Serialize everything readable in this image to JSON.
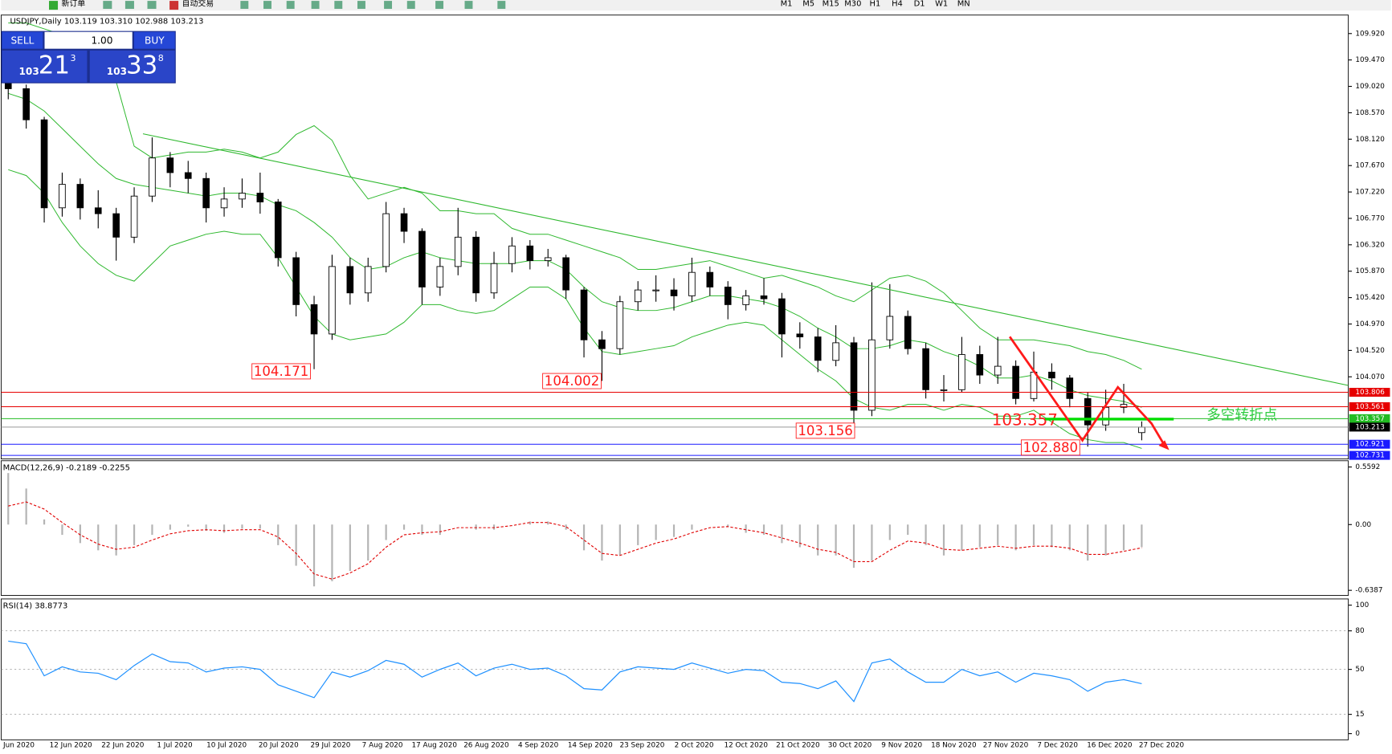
{
  "toolbar": {
    "new_order": "新订单",
    "auto_trading": "自动交易",
    "timeframes": [
      "M1",
      "M5",
      "M15",
      "M30",
      "H1",
      "H4",
      "D1",
      "W1",
      "MN"
    ]
  },
  "trade_panel": {
    "sell": "SELL",
    "buy": "BUY",
    "lots": "1.00",
    "bid": {
      "big": "103",
      "pips": "21",
      "fraction": "3"
    },
    "ask": {
      "big": "103",
      "pips": "33",
      "fraction": "8"
    }
  },
  "chart_data": [
    {
      "type": "candlestick",
      "title": "USDJPY,Daily  103.119 103.310 102.988 103.213",
      "candles": [
        [
          109.2,
          109.4,
          108.8,
          108.98
        ],
        [
          108.98,
          109.05,
          108.3,
          108.45
        ],
        [
          108.45,
          108.5,
          106.7,
          106.95
        ],
        [
          106.95,
          107.55,
          106.8,
          107.35
        ],
        [
          107.35,
          107.45,
          106.75,
          106.95
        ],
        [
          106.95,
          107.25,
          106.6,
          106.85
        ],
        [
          106.85,
          106.95,
          106.05,
          106.45
        ],
        [
          106.45,
          107.3,
          106.35,
          107.15
        ],
        [
          107.15,
          108.15,
          107.05,
          107.8
        ],
        [
          107.8,
          107.9,
          107.3,
          107.55
        ],
        [
          107.55,
          107.75,
          107.2,
          107.45
        ],
        [
          107.45,
          107.55,
          106.7,
          106.95
        ],
        [
          106.95,
          107.3,
          106.8,
          107.1
        ],
        [
          107.1,
          107.45,
          106.95,
          107.2
        ],
        [
          107.2,
          107.55,
          106.85,
          107.05
        ],
        [
          107.05,
          107.1,
          105.95,
          106.1
        ],
        [
          106.1,
          106.2,
          105.1,
          105.3
        ],
        [
          105.3,
          105.45,
          104.2,
          104.8
        ],
        [
          104.8,
          106.15,
          104.7,
          105.95
        ],
        [
          105.95,
          106.1,
          105.3,
          105.5
        ],
        [
          105.5,
          106.1,
          105.35,
          105.95
        ],
        [
          105.95,
          107.05,
          105.85,
          106.85
        ],
        [
          106.85,
          106.95,
          106.35,
          106.55
        ],
        [
          106.55,
          106.6,
          105.3,
          105.6
        ],
        [
          105.6,
          106.1,
          105.45,
          105.95
        ],
        [
          105.95,
          106.95,
          105.8,
          106.45
        ],
        [
          106.45,
          106.55,
          105.35,
          105.5
        ],
        [
          105.5,
          106.2,
          105.4,
          106.0
        ],
        [
          106.0,
          106.45,
          105.85,
          106.3
        ],
        [
          106.3,
          106.4,
          105.9,
          106.05
        ],
        [
          106.05,
          106.25,
          105.95,
          106.1
        ],
        [
          106.1,
          106.15,
          105.4,
          105.55
        ],
        [
          105.55,
          105.6,
          104.4,
          104.7
        ],
        [
          104.7,
          104.85,
          104.0,
          104.55
        ],
        [
          104.55,
          105.45,
          104.45,
          105.35
        ],
        [
          105.35,
          105.7,
          105.2,
          105.55
        ],
        [
          105.55,
          105.8,
          105.35,
          105.55
        ],
        [
          105.55,
          105.75,
          105.2,
          105.45
        ],
        [
          105.45,
          106.1,
          105.35,
          105.85
        ],
        [
          105.85,
          105.95,
          105.45,
          105.6
        ],
        [
          105.6,
          105.7,
          105.05,
          105.3
        ],
        [
          105.3,
          105.55,
          105.2,
          105.45
        ],
        [
          105.45,
          105.75,
          105.3,
          105.4
        ],
        [
          105.4,
          105.5,
          104.4,
          104.8
        ],
        [
          104.8,
          105.0,
          104.55,
          104.75
        ],
        [
          104.75,
          104.9,
          104.15,
          104.35
        ],
        [
          104.35,
          104.95,
          104.25,
          104.65
        ],
        [
          104.65,
          104.75,
          103.18,
          103.5
        ],
        [
          103.5,
          105.68,
          103.4,
          104.7
        ],
        [
          104.7,
          105.65,
          104.55,
          105.1
        ],
        [
          105.1,
          105.2,
          104.45,
          104.55
        ],
        [
          104.55,
          104.65,
          103.7,
          103.85
        ],
        [
          103.85,
          104.1,
          103.65,
          103.85
        ],
        [
          103.85,
          104.75,
          103.8,
          104.45
        ],
        [
          104.45,
          104.6,
          103.95,
          104.1
        ],
        [
          104.1,
          104.75,
          103.95,
          104.25
        ],
        [
          104.25,
          104.35,
          103.6,
          103.7
        ],
        [
          103.7,
          104.5,
          103.65,
          104.15
        ],
        [
          104.15,
          104.3,
          103.85,
          104.05
        ],
        [
          104.05,
          104.1,
          103.55,
          103.7
        ],
        [
          103.7,
          103.8,
          102.88,
          103.25
        ],
        [
          103.25,
          103.85,
          103.15,
          103.55
        ],
        [
          103.55,
          103.95,
          103.45,
          103.6
        ],
        [
          103.119,
          103.31,
          102.988,
          103.213
        ]
      ],
      "bands": {
        "color": "#2eb82e",
        "upper": [
          110.1,
          110.1,
          110.0,
          109.9,
          109.7,
          109.4,
          109.1,
          108.0,
          107.8,
          107.85,
          107.9,
          107.9,
          107.95,
          107.9,
          107.8,
          107.9,
          108.2,
          108.35,
          108.1,
          107.5,
          107.1,
          107.2,
          107.3,
          107.2,
          106.9,
          106.9,
          106.85,
          106.85,
          106.6,
          106.5,
          106.5,
          106.4,
          106.3,
          106.2,
          106.1,
          105.9,
          105.9,
          105.95,
          106.0,
          106.05,
          105.95,
          105.85,
          105.75,
          105.8,
          105.7,
          105.6,
          105.45,
          105.35,
          105.55,
          105.75,
          105.8,
          105.7,
          105.5,
          105.2,
          104.9,
          104.7,
          104.7,
          104.7,
          104.65,
          104.6,
          104.5,
          104.45,
          104.35,
          104.2
        ],
        "middle": [
          108.9,
          108.8,
          108.6,
          108.3,
          108.0,
          107.7,
          107.45,
          107.35,
          107.3,
          107.25,
          107.2,
          107.15,
          107.2,
          107.2,
          107.15,
          107.0,
          106.9,
          106.7,
          106.45,
          106.1,
          105.9,
          105.95,
          106.1,
          106.2,
          106.1,
          106.05,
          106.0,
          106.0,
          106.0,
          106.05,
          106.05,
          105.9,
          105.6,
          105.35,
          105.25,
          105.2,
          105.2,
          105.25,
          105.35,
          105.45,
          105.45,
          105.4,
          105.35,
          105.25,
          105.1,
          104.9,
          104.75,
          104.55,
          104.55,
          104.6,
          104.7,
          104.65,
          104.5,
          104.4,
          104.25,
          104.05,
          104.05,
          104.1,
          104.0,
          103.85,
          103.75,
          103.7,
          103.65,
          103.55
        ],
        "lower": [
          107.6,
          107.5,
          107.2,
          106.7,
          106.3,
          106.0,
          105.8,
          105.7,
          106.0,
          106.3,
          106.4,
          106.5,
          106.55,
          106.5,
          106.5,
          106.1,
          105.6,
          105.1,
          104.8,
          104.7,
          104.75,
          104.8,
          105.0,
          105.3,
          105.3,
          105.2,
          105.15,
          105.2,
          105.4,
          105.6,
          105.6,
          105.4,
          104.9,
          104.5,
          104.45,
          104.5,
          104.55,
          104.6,
          104.75,
          104.85,
          104.95,
          105.0,
          104.95,
          104.7,
          104.45,
          104.2,
          104.0,
          103.7,
          103.55,
          103.5,
          103.6,
          103.6,
          103.5,
          103.6,
          103.55,
          103.4,
          103.4,
          103.5,
          103.3,
          103.1,
          103.0,
          102.95,
          102.95,
          102.85
        ]
      },
      "ylim": [
        102.67,
        110.22
      ],
      "yticks": [
        {
          "value": 109.92,
          "label": "109.920"
        },
        {
          "value": 109.47,
          "label": "109.470"
        },
        {
          "value": 109.02,
          "label": "109.020"
        },
        {
          "value": 108.57,
          "label": "108.570"
        },
        {
          "value": 108.12,
          "label": "108.120"
        },
        {
          "value": 107.67,
          "label": "107.670"
        },
        {
          "value": 107.22,
          "label": "107.220"
        },
        {
          "value": 106.77,
          "label": "106.770"
        },
        {
          "value": 106.32,
          "label": "106.320"
        },
        {
          "value": 105.87,
          "label": "105.870"
        },
        {
          "value": 105.42,
          "label": "105.420"
        },
        {
          "value": 104.97,
          "label": "104.970"
        },
        {
          "value": 104.52,
          "label": "104.520"
        },
        {
          "value": 104.07,
          "label": "104.070"
        }
      ],
      "price_lines": [
        {
          "value": 103.806,
          "color": "#e60000"
        },
        {
          "value": 103.561,
          "color": "#e60000"
        },
        {
          "value": 103.357,
          "color": "#22bb22"
        },
        {
          "value": 103.213,
          "color": "#000000"
        },
        {
          "value": 102.921,
          "color": "#1a1aff"
        },
        {
          "value": 102.731,
          "color": "#1a1aff"
        }
      ],
      "annotations": [
        "104.171",
        "104.002",
        "103.156",
        "103.357",
        "102.880",
        "多空转折点"
      ],
      "date_labels": [
        "Jun 2020",
        "12 Jun 2020",
        "22 Jun 2020",
        "1 Jul 2020",
        "10 Jul 2020",
        "20 Jul 2020",
        "29 Jul 2020",
        "7 Aug 2020",
        "17 Aug 2020",
        "26 Aug 2020",
        "4 Sep 2020",
        "14 Sep 2020",
        "23 Sep 2020",
        "2 Oct 2020",
        "12 Oct 2020",
        "21 Oct 2020",
        "30 Oct 2020",
        "9 Nov 2020",
        "18 Nov 2020",
        "27 Nov 2020",
        "7 Dec 2020",
        "16 Dec 2020",
        "27 Dec 2020"
      ]
    },
    {
      "type": "macd",
      "title": "MACD(12,26,9) -0.2189 -0.2255",
      "hist_color": "#b4b4b4",
      "signal_color": "#e00000",
      "histogram": [
        0.5,
        0.35,
        0.05,
        -0.1,
        -0.18,
        -0.25,
        -0.3,
        -0.2,
        -0.1,
        -0.05,
        -0.02,
        -0.06,
        -0.08,
        -0.04,
        -0.04,
        -0.2,
        -0.4,
        -0.6,
        -0.55,
        -0.45,
        -0.35,
        -0.15,
        -0.05,
        -0.1,
        -0.1,
        0.0,
        -0.05,
        -0.05,
        0.0,
        0.03,
        0.03,
        -0.05,
        -0.25,
        -0.35,
        -0.3,
        -0.2,
        -0.15,
        -0.12,
        -0.05,
        0.0,
        -0.02,
        -0.08,
        -0.1,
        -0.18,
        -0.22,
        -0.3,
        -0.3,
        -0.42,
        -0.35,
        -0.15,
        -0.1,
        -0.2,
        -0.3,
        -0.25,
        -0.22,
        -0.2,
        -0.25,
        -0.2,
        -0.22,
        -0.25,
        -0.35,
        -0.3,
        -0.25,
        -0.2189
      ],
      "signal": [
        0.18,
        0.22,
        0.15,
        0.02,
        -0.1,
        -0.19,
        -0.24,
        -0.22,
        -0.15,
        -0.09,
        -0.06,
        -0.05,
        -0.06,
        -0.05,
        -0.05,
        -0.12,
        -0.28,
        -0.48,
        -0.53,
        -0.47,
        -0.38,
        -0.22,
        -0.1,
        -0.08,
        -0.07,
        -0.03,
        -0.03,
        -0.03,
        -0.01,
        0.02,
        0.02,
        -0.02,
        -0.15,
        -0.28,
        -0.3,
        -0.24,
        -0.18,
        -0.14,
        -0.08,
        -0.03,
        -0.02,
        -0.05,
        -0.08,
        -0.13,
        -0.18,
        -0.24,
        -0.27,
        -0.36,
        -0.36,
        -0.25,
        -0.16,
        -0.18,
        -0.24,
        -0.25,
        -0.23,
        -0.21,
        -0.23,
        -0.21,
        -0.21,
        -0.23,
        -0.29,
        -0.29,
        -0.26,
        -0.2255
      ],
      "ylim": [
        -0.688,
        0.62
      ],
      "yticks": [
        0.5592,
        {
          "value": 0,
          "label": "0.00"
        },
        -0.6387
      ]
    },
    {
      "type": "line",
      "title": "RSI(14) 38.8773",
      "color": "#1e90ff",
      "values": [
        72,
        70,
        45,
        52,
        48,
        47,
        42,
        53,
        62,
        56,
        55,
        48,
        51,
        52,
        50,
        38,
        33,
        28,
        48,
        44,
        49,
        57,
        54,
        44,
        50,
        55,
        45,
        51,
        54,
        50,
        51,
        45,
        35,
        34,
        48,
        52,
        51,
        50,
        55,
        51,
        47,
        50,
        49,
        40,
        39,
        35,
        41,
        25,
        55,
        58,
        48,
        40,
        40,
        50,
        45,
        48,
        40,
        47,
        45,
        42,
        33,
        40,
        42,
        38.8773
      ],
      "ylim": [
        0,
        100
      ],
      "yticks": [
        100,
        80,
        50,
        15,
        0
      ],
      "grid": true
    }
  ]
}
